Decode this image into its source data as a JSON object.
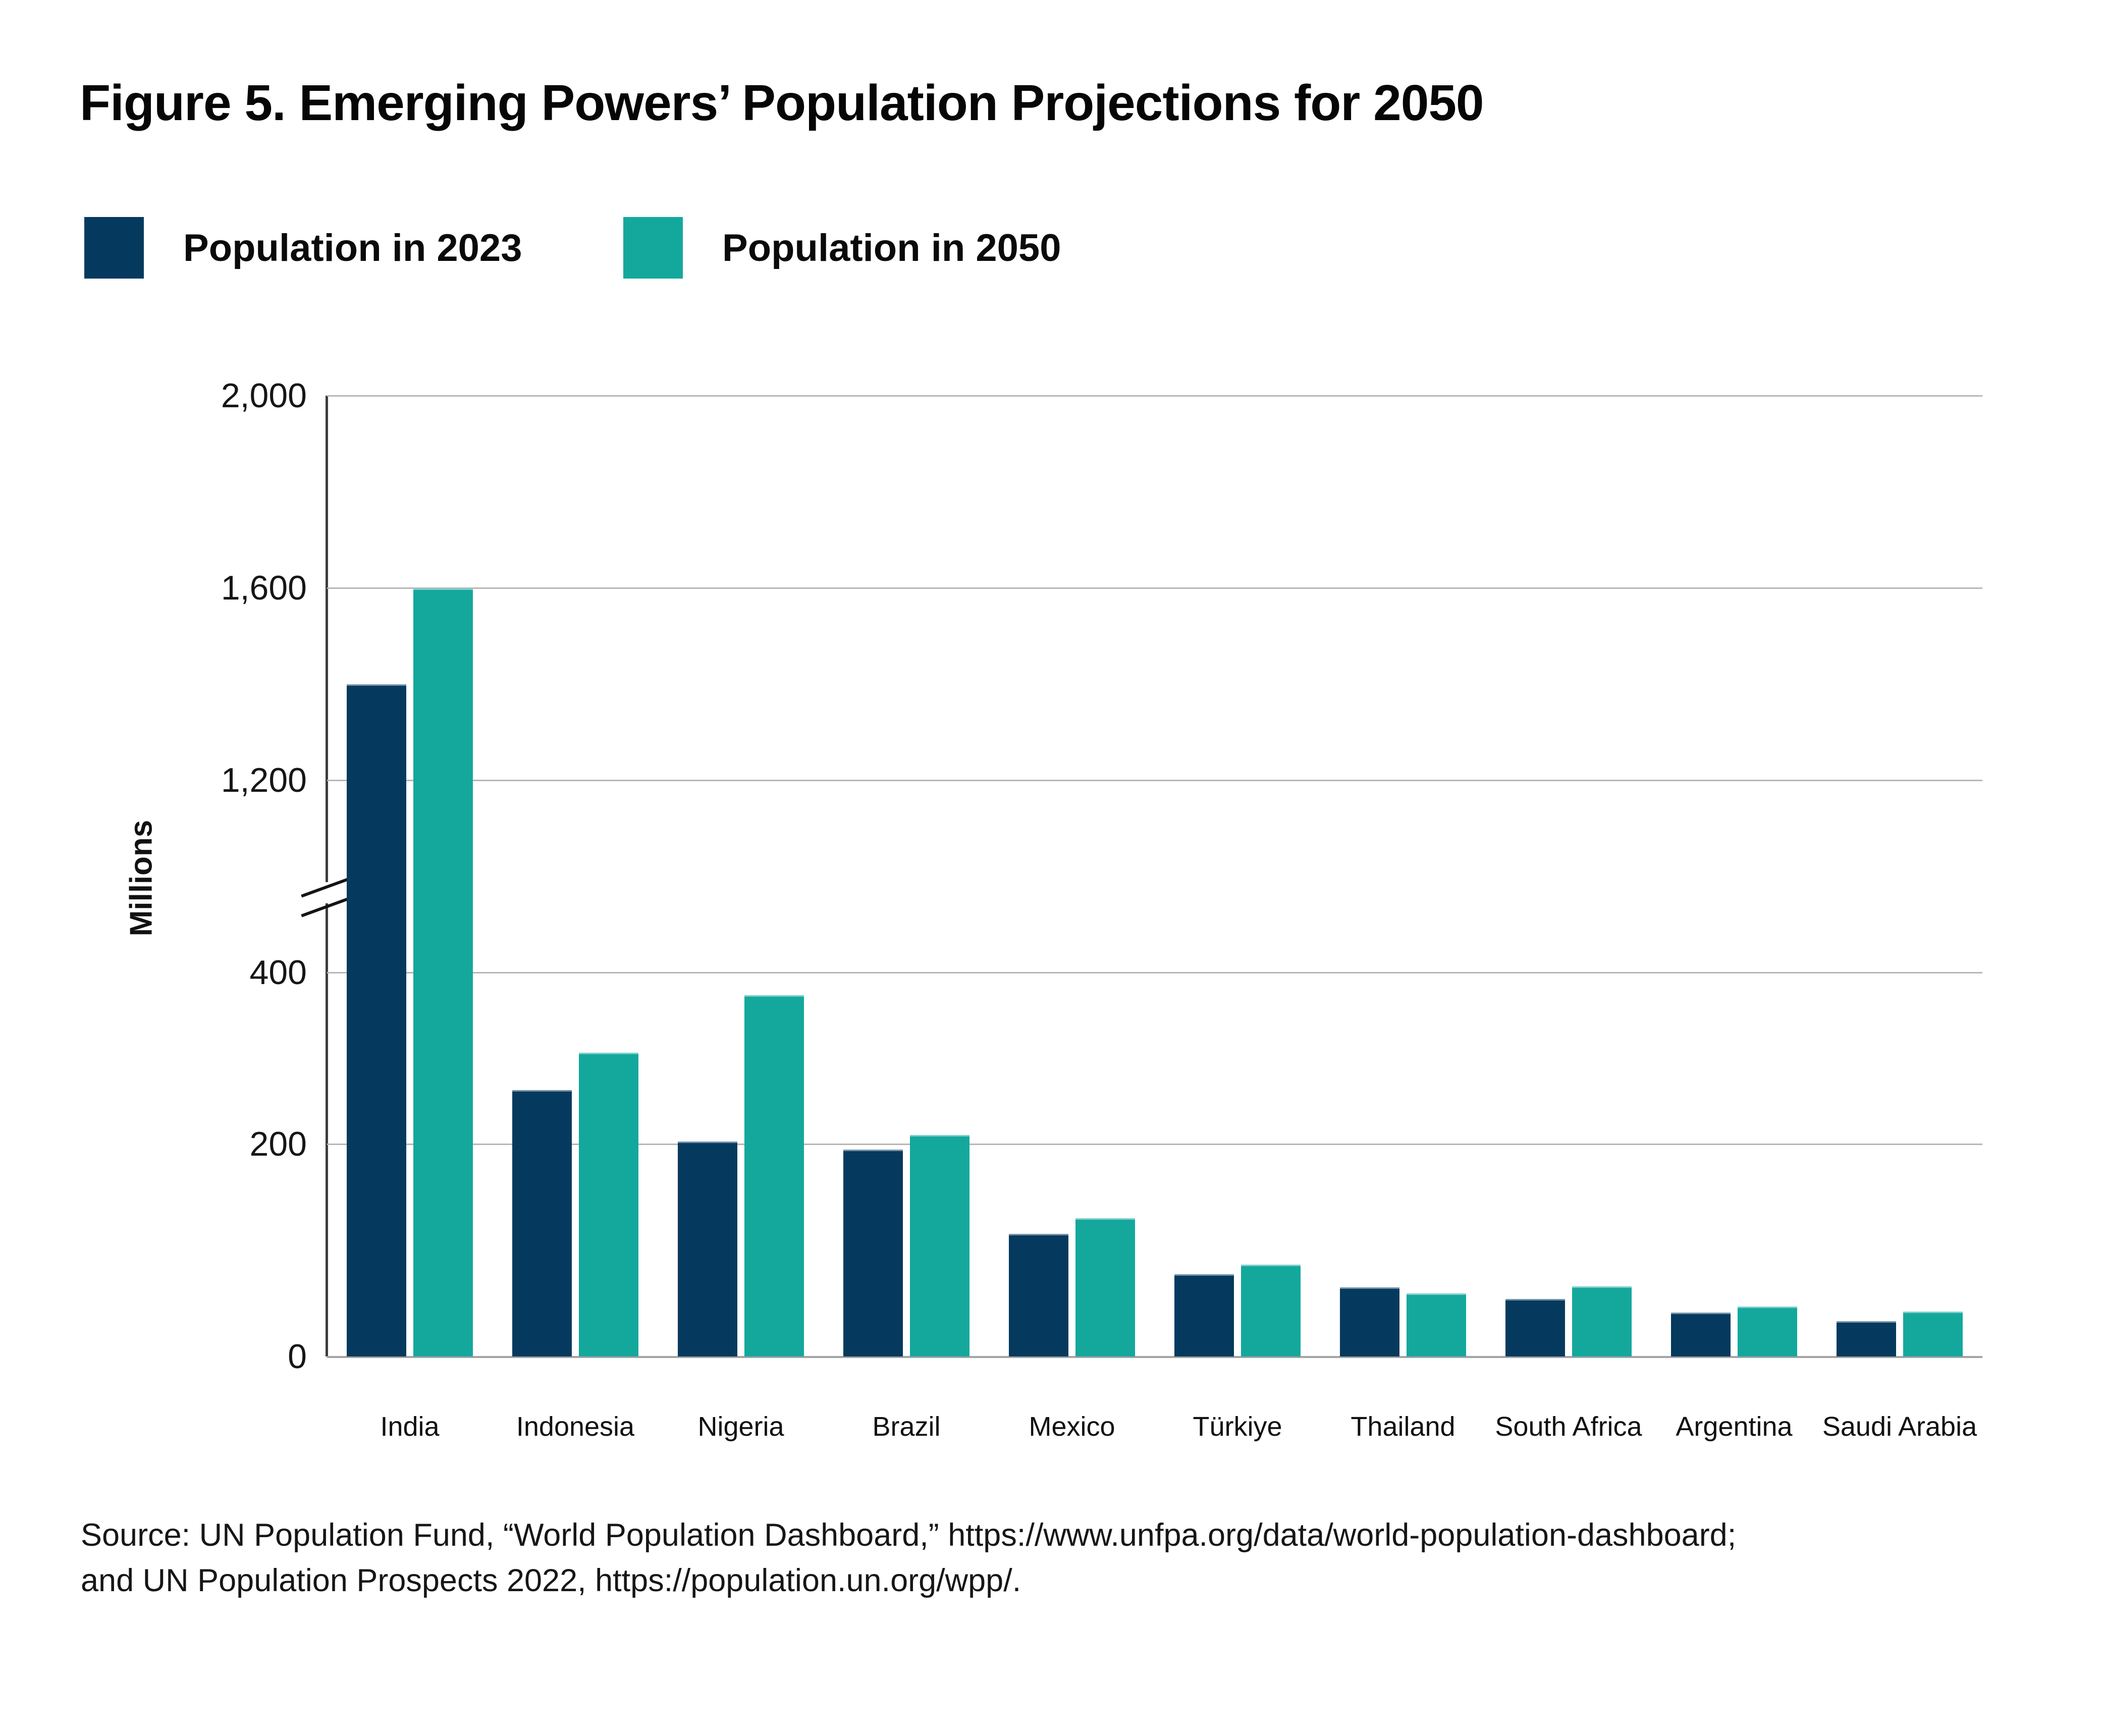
{
  "figure": {
    "title": "Figure 5. Emerging Powers’ Population Projections for 2050",
    "source_line1": "Source: UN Population Fund, “World Population Dashboard,” https://www.unfpa.org/data/world-population-dashboard;",
    "source_line2": "and UN Population Prospects 2022,  https://population.un.org/wpp/."
  },
  "colors": {
    "navy": "#053A5E",
    "teal": "#14A89D",
    "gridline": "#b7b7b7",
    "axis": "#3d3d3d"
  },
  "legend": [
    {
      "label": "Population in 2023",
      "color": "#053A5E"
    },
    {
      "label": "Population in 2050",
      "color": "#14A89D"
    }
  ],
  "chart_data": {
    "type": "bar",
    "title": "Figure 5. Emerging Powers’ Population Projections for 2050",
    "xlabel": "",
    "ylabel": "Millions",
    "categories": [
      "India",
      "Indonesia",
      "Nigeria",
      "Brazil",
      "Mexico",
      "Türkiye",
      "Thailand",
      "South Africa",
      "Argentina",
      "Saudi Arabia"
    ],
    "series": [
      {
        "name": "Population in 2023",
        "color": "#053A5E",
        "values": [
          1400,
          278,
          224,
          216,
          128,
          86,
          72,
          60,
          46,
          37
        ]
      },
      {
        "name": "Population in 2050",
        "color": "#14A89D",
        "values": [
          1600,
          317,
          377,
          231,
          144,
          96,
          66,
          73,
          52,
          47
        ]
      }
    ],
    "ylim": [
      0,
      2000
    ],
    "axis_break": true,
    "axis_break_between": [
      400,
      1200
    ],
    "y_ticks": [
      {
        "value": 0,
        "label": "0"
      },
      {
        "value": 200,
        "label": "200"
      },
      {
        "value": 400,
        "label": "400"
      },
      {
        "value": 1200,
        "label": "1,200"
      },
      {
        "value": 1600,
        "label": "1,600"
      },
      {
        "value": 2000,
        "label": "2,000"
      }
    ],
    "grid": true,
    "legend_position": "top-left"
  }
}
